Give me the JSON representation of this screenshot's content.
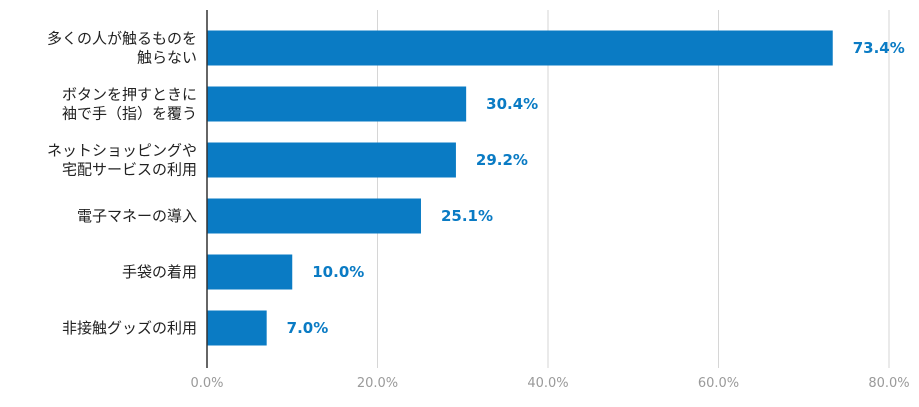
{
  "chart_data": {
    "type": "bar",
    "orientation": "horizontal",
    "categories": [
      [
        "多くの人が触るものを",
        "触らない"
      ],
      [
        "ボタンを押すときに",
        "袖で手（指）を覆う"
      ],
      [
        "ネットショッピングや",
        "宅配サービスの利用"
      ],
      [
        "電子マネーの導入"
      ],
      [
        "手袋の着用"
      ],
      [
        "非接触グッズの利用"
      ]
    ],
    "values": [
      73.4,
      30.4,
      29.2,
      25.1,
      10.0,
      7.0
    ],
    "value_labels": [
      "73.4%",
      "30.4%",
      "29.2%",
      "25.1%",
      "10.0%",
      "7.0%"
    ],
    "xlim": [
      0,
      80
    ],
    "xticks": [
      0,
      20,
      40,
      60,
      80
    ],
    "xtick_labels": [
      "0.0%",
      "20.0%",
      "40.0%",
      "60.0%",
      "80.0%"
    ],
    "grid": "vertical",
    "bar_color": "#0a7bc4",
    "value_label_color": "#0a7bc4",
    "grid_color": "#d6d6d6",
    "title": "",
    "xlabel": "",
    "ylabel": ""
  }
}
